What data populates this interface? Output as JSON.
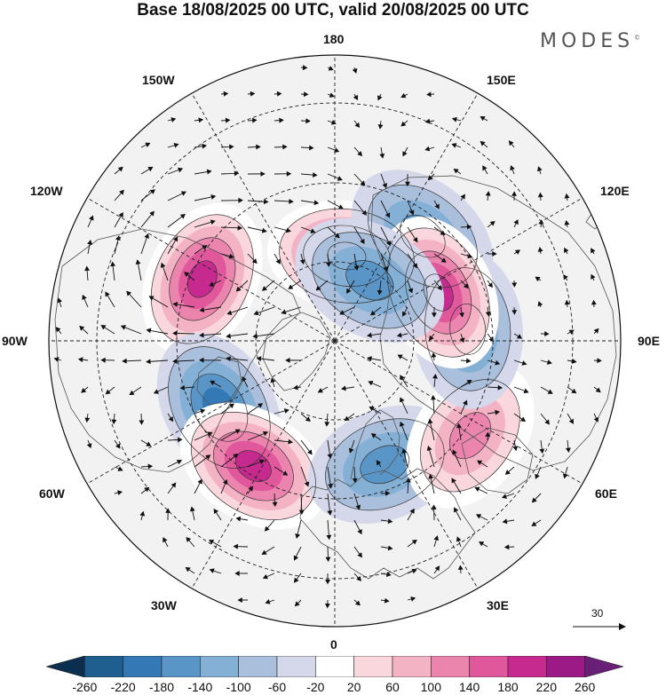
{
  "title": "Base 18/08/2025 00 UTC, valid 20/08/2025 00 UTC",
  "brand": {
    "name": "MODES",
    "mark": "©"
  },
  "longitude_labels": {
    "top": "180",
    "top_left": "150W",
    "top_right": "150E",
    "upper_left": "120W",
    "upper_right": "120E",
    "left": "90W",
    "right": "90E",
    "lower_left": "60W",
    "lower_right": "60E",
    "bottom_left": "30W",
    "bottom_right": "30E",
    "bottom": "0"
  },
  "reference_vector": {
    "value": "30"
  },
  "colorbar": {
    "colors": [
      "#0d2f4f",
      "#1f5f8f",
      "#3479b5",
      "#5a95c7",
      "#85b0d6",
      "#aabfdc",
      "#d4d8ea",
      "#ffffff",
      "#f9d7dc",
      "#f4b3c4",
      "#ec85ae",
      "#e0579c",
      "#c72a8f",
      "#9c1a85",
      "#6a1f77"
    ],
    "ticks": [
      "-260",
      "-220",
      "-180",
      "-140",
      "-100",
      "-60",
      "-20",
      "20",
      "60",
      "100",
      "140",
      "180",
      "220",
      "260"
    ]
  },
  "anomaly_centers": [
    {
      "id": "pos-dateline",
      "lon": 172,
      "lat": 63,
      "value": 230
    },
    {
      "id": "neg-n-pacific",
      "lon": 140,
      "lat": 47,
      "value": -150
    },
    {
      "id": "pos-alaska-gulf",
      "lon": -115,
      "lat": 44,
      "value": 230
    },
    {
      "id": "neg-hudson",
      "lon": -60,
      "lat": 48,
      "value": -190
    },
    {
      "id": "pos-n-atlantic",
      "lon": -33,
      "lat": 43,
      "value": 200
    },
    {
      "id": "neg-scandinavia",
      "lon": 22,
      "lat": 48,
      "value": -150
    },
    {
      "id": "pos-west-asia",
      "lon": 55,
      "lat": 38,
      "value": 150
    },
    {
      "id": "neg-siberia",
      "lon": 95,
      "lat": 48,
      "value": -130
    },
    {
      "id": "pos-mongolia",
      "lon": 115,
      "lat": 54,
      "value": 210
    },
    {
      "id": "neg-east-siberia",
      "lon": 150,
      "lat": 68,
      "value": -120
    }
  ]
}
